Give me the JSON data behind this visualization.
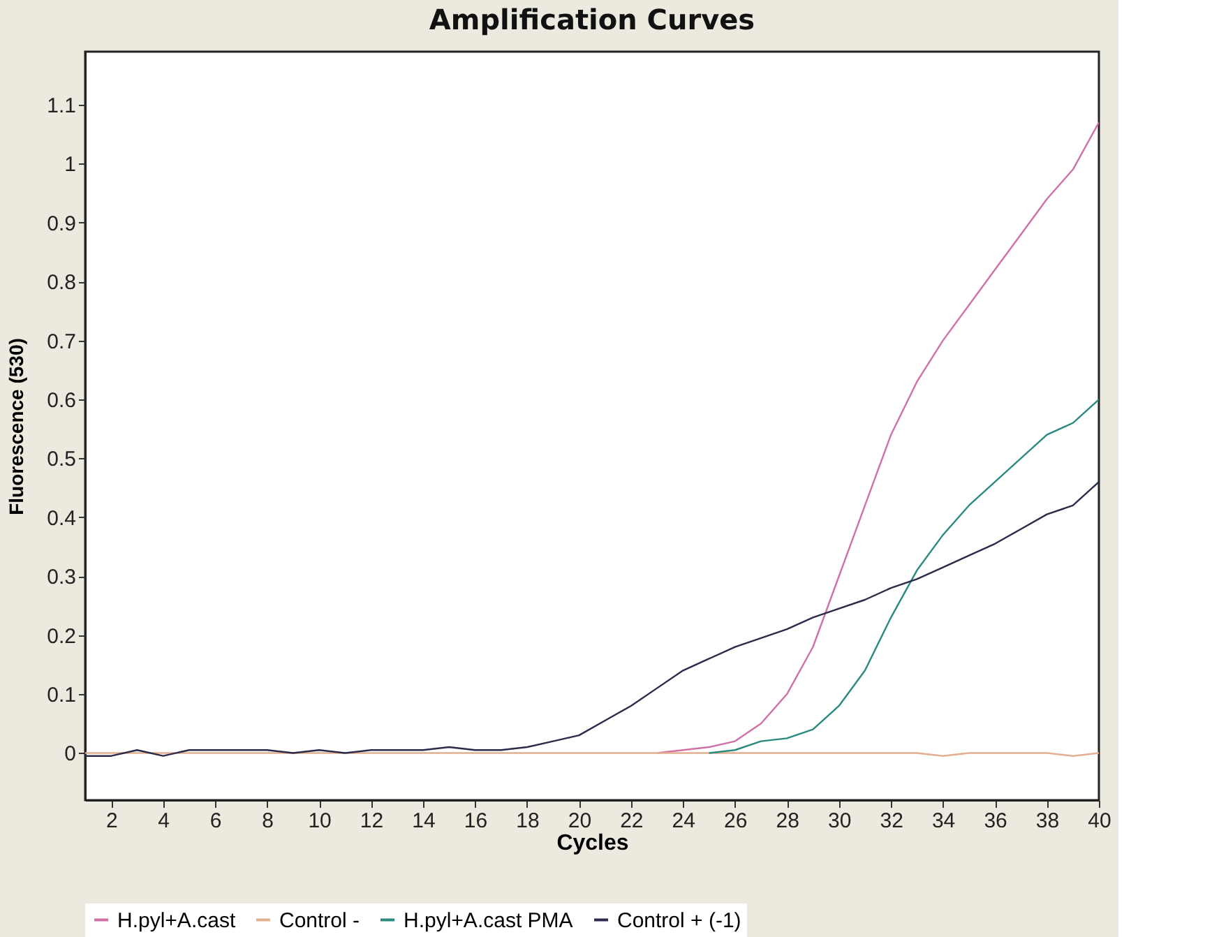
{
  "chart_data": {
    "type": "line",
    "title": "Amplification Curves",
    "xlabel": "Cycles",
    "ylabel": "Fluorescence (530)",
    "x": [
      1,
      2,
      3,
      4,
      5,
      6,
      7,
      8,
      9,
      10,
      11,
      12,
      13,
      14,
      15,
      16,
      17,
      18,
      19,
      20,
      21,
      22,
      23,
      24,
      25,
      26,
      27,
      28,
      29,
      30,
      31,
      32,
      33,
      34,
      35,
      36,
      37,
      38,
      39,
      40
    ],
    "series": [
      {
        "name": "H.pyl+A.cast",
        "color": "#d070a8",
        "values": [
          null,
          null,
          null,
          null,
          null,
          null,
          null,
          null,
          null,
          null,
          null,
          null,
          null,
          null,
          null,
          null,
          null,
          null,
          null,
          null,
          null,
          null,
          0,
          0.005,
          0.01,
          0.02,
          0.05,
          0.1,
          0.18,
          0.3,
          0.42,
          0.54,
          0.63,
          0.7,
          0.76,
          0.82,
          0.88,
          0.94,
          0.99,
          1.07
        ]
      },
      {
        "name": "Control -",
        "color": "#e0b090",
        "values": [
          0,
          0,
          0,
          0,
          0,
          0,
          0,
          0,
          0,
          0,
          0,
          0,
          0,
          0,
          0,
          0,
          0,
          0,
          0,
          0,
          0,
          0,
          0,
          0,
          0,
          0,
          0,
          0,
          0,
          0,
          0,
          0,
          0,
          -0.005,
          0,
          0,
          0,
          0,
          -0.005,
          0
        ]
      },
      {
        "name": "H.pyl+A.cast PMA",
        "color": "#2a8a80",
        "values": [
          null,
          null,
          null,
          null,
          null,
          null,
          null,
          null,
          null,
          null,
          null,
          null,
          null,
          null,
          null,
          null,
          null,
          null,
          null,
          null,
          null,
          null,
          null,
          null,
          0,
          0.005,
          0.02,
          0.025,
          0.04,
          0.08,
          0.14,
          0.23,
          0.31,
          0.37,
          0.42,
          0.46,
          0.5,
          0.54,
          0.56,
          0.6
        ]
      },
      {
        "name": "Control + (-1)",
        "color": "#2a2a4a",
        "values": [
          -0.005,
          -0.005,
          0.005,
          -0.005,
          0.005,
          0.005,
          0.005,
          0.005,
          0,
          0.005,
          0,
          0.005,
          0.005,
          0.005,
          0.01,
          0.005,
          0.005,
          0.01,
          0.02,
          0.03,
          0.055,
          0.08,
          0.11,
          0.14,
          0.16,
          0.18,
          0.195,
          0.21,
          0.23,
          0.245,
          0.26,
          0.28,
          0.295,
          0.315,
          0.335,
          0.355,
          0.38,
          0.405,
          0.42,
          0.46
        ]
      }
    ],
    "xlim": [
      1,
      40
    ],
    "xticks": [
      2,
      4,
      6,
      8,
      10,
      12,
      14,
      16,
      18,
      20,
      22,
      24,
      26,
      28,
      30,
      32,
      34,
      36,
      38,
      40
    ],
    "ylim": [
      -0.08,
      1.19
    ],
    "yticks": [
      0,
      0.1,
      0.2,
      0.3,
      0.4,
      0.5,
      0.6,
      0.7,
      0.8,
      0.9,
      1,
      1.1
    ],
    "grid": false,
    "legend": "bottom",
    "marker": "none",
    "line_style": "solid"
  }
}
